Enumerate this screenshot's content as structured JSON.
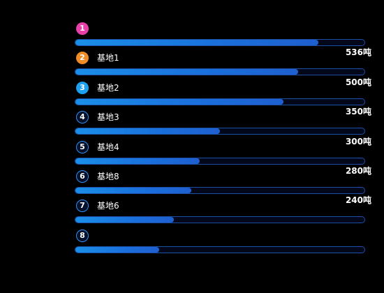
{
  "chart_data": {
    "type": "bar",
    "orientation": "horizontal",
    "ranks": [
      "1",
      "2",
      "3",
      "4",
      "5",
      "6",
      "7",
      "8"
    ],
    "categories": [
      "",
      "基地1",
      "基地2",
      "基地3",
      "基地4",
      "基地8",
      "基地6",
      ""
    ],
    "value_labels": [
      "",
      "536吨",
      "500吨",
      "350吨",
      "300吨",
      "280吨",
      "240吨",
      ""
    ],
    "fill_fraction": [
      0.84,
      0.77,
      0.72,
      0.5,
      0.43,
      0.4,
      0.34,
      0.29
    ],
    "badge_colors": [
      "#e83fa8",
      "#f08c28",
      "#1ea0f0",
      "",
      "",
      "",
      "",
      ""
    ],
    "bar_color": "#1a7fe4",
    "track_border_color": "#1c4fa8",
    "background": "#000000"
  }
}
